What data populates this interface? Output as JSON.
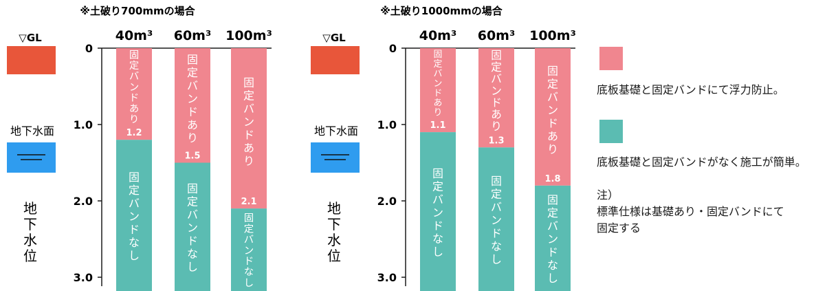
{
  "colors": {
    "band": "#f0868f",
    "noband": "#5bbcb2",
    "surface": "#e8563a",
    "water": "#2f9cef"
  },
  "left_panel": {
    "gl_label": "▽GL",
    "water_label": "地下水面",
    "vertical_label": [
      "地",
      "下",
      "水",
      "位"
    ]
  },
  "legend": {
    "band_text": "底板基礎と固定バンドにて浮力防止。",
    "noband_text": "底板基礎と固定バンドがなく施工が簡単。"
  },
  "note": {
    "title": "注）",
    "lines": [
      "標準仕様は基礎あり・固定バンドにて",
      "固定する"
    ]
  },
  "chart_data": [
    {
      "type": "bar",
      "title": "※土破り700mmの場合",
      "categories": [
        "40m³",
        "60m³",
        "100m³"
      ],
      "series": [
        {
          "name": "固定バンドあり",
          "values": [
            1.2,
            1.5,
            2.1
          ]
        },
        {
          "name": "固定バンドなし",
          "values": [
            1.2,
            1.5,
            2.1
          ]
        }
      ],
      "value_labels": [
        "1.2",
        "1.5",
        "2.1"
      ],
      "yticks": [
        "0",
        "1.0",
        "2.0",
        "3.0"
      ],
      "ylim": [
        0,
        3.1
      ],
      "orientation": "downward"
    },
    {
      "type": "bar",
      "title": "※土破り1000mmの場合",
      "categories": [
        "40m³",
        "60m³",
        "100m³"
      ],
      "series": [
        {
          "name": "固定バンドあり",
          "values": [
            1.1,
            1.3,
            1.8
          ]
        },
        {
          "name": "固定バンドなし",
          "values": [
            1.1,
            1.3,
            1.8
          ]
        }
      ],
      "value_labels": [
        "1.1",
        "1.3",
        "1.8"
      ],
      "yticks": [
        "0",
        "1.0",
        "2.0",
        "3.0"
      ],
      "ylim": [
        0,
        3.1
      ],
      "orientation": "downward"
    }
  ]
}
